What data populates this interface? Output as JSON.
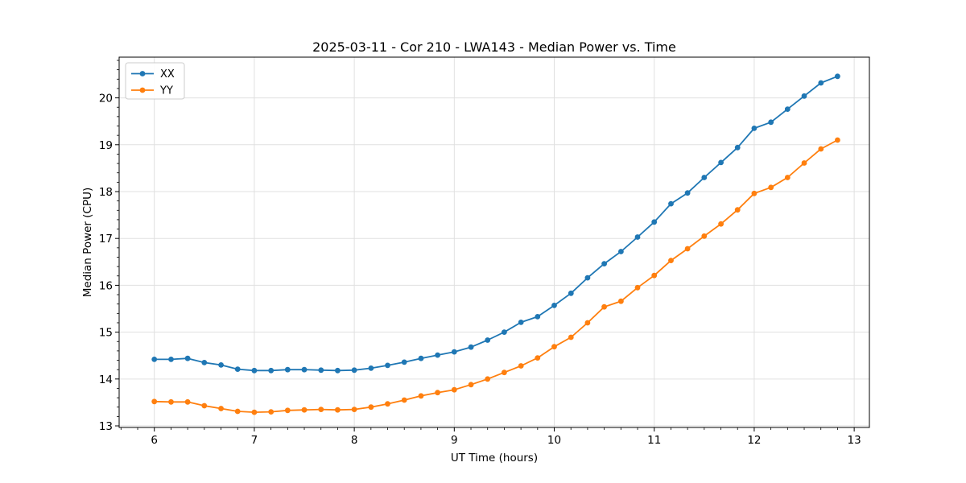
{
  "figure": {
    "background": "#ffffff"
  },
  "chart_data": {
    "type": "line",
    "title": "2025-03-11 - Cor 210 - LWA143 - Median Power vs. Time",
    "xlabel": "UT Time (hours)",
    "ylabel": "Median Power (CPU)",
    "xlim": [
      5.648,
      13.152
    ],
    "ylim": [
      12.966,
      20.869
    ],
    "xticks": [
      6,
      7,
      8,
      9,
      10,
      11,
      12,
      13
    ],
    "yticks": [
      13,
      14,
      15,
      16,
      17,
      18,
      19,
      20
    ],
    "x_minor_step": 0.1666667,
    "y_minor_step": 0.2,
    "grid": true,
    "grid_color": "#e0e0e0",
    "spine_color": "#000000",
    "legend_position": "upper left",
    "x": [
      6.0,
      6.167,
      6.333,
      6.5,
      6.667,
      6.833,
      7.0,
      7.167,
      7.333,
      7.5,
      7.667,
      7.833,
      8.0,
      8.167,
      8.333,
      8.5,
      8.667,
      8.833,
      9.0,
      9.167,
      9.333,
      9.5,
      9.667,
      9.833,
      10.0,
      10.167,
      10.333,
      10.5,
      10.667,
      10.833,
      11.0,
      11.167,
      11.333,
      11.5,
      11.667,
      11.833,
      12.0,
      12.167,
      12.333,
      12.5,
      12.667,
      12.833
    ],
    "series": [
      {
        "name": "XX",
        "color": "#1f77b4",
        "values": [
          14.42,
          14.42,
          14.44,
          14.35,
          14.3,
          14.21,
          14.18,
          14.18,
          14.2,
          14.2,
          14.19,
          14.18,
          14.19,
          14.23,
          14.29,
          14.36,
          14.44,
          14.51,
          14.58,
          14.68,
          14.83,
          15.0,
          15.21,
          15.33,
          15.57,
          15.83,
          16.16,
          16.46,
          16.72,
          17.03,
          17.35,
          17.74,
          17.97,
          18.3,
          18.62,
          18.94,
          19.35,
          19.48,
          19.76,
          20.04,
          20.32,
          20.46
        ]
      },
      {
        "name": "YY",
        "color": "#ff7f0e",
        "values": [
          13.52,
          13.51,
          13.51,
          13.43,
          13.37,
          13.31,
          13.29,
          13.3,
          13.33,
          13.34,
          13.35,
          13.34,
          13.35,
          13.4,
          13.47,
          13.55,
          13.64,
          13.71,
          13.77,
          13.88,
          14.0,
          14.14,
          14.28,
          14.45,
          14.69,
          14.89,
          15.2,
          15.54,
          15.66,
          15.95,
          16.21,
          16.53,
          16.78,
          17.05,
          17.31,
          17.61,
          17.96,
          18.09,
          18.3,
          18.61,
          18.91,
          19.1
        ]
      }
    ]
  }
}
